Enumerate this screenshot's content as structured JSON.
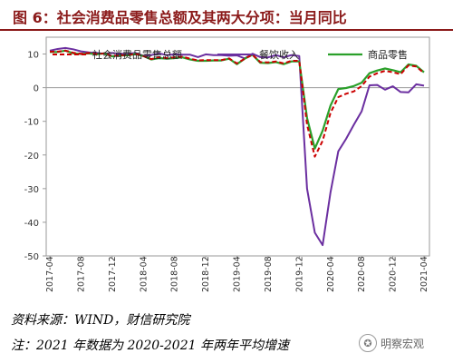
{
  "title": "图 6：社会消费品零售总额及其两大分项：当月同比",
  "source_note": "资料来源：WIND，财信研究院",
  "footnote": "注：2021 年数据为 2020-2021 年两年平均增速",
  "watermark": {
    "icon": "wechat-icon",
    "text": "明察宏观"
  },
  "colors": {
    "title": "#8b1a1a",
    "total": "#cc0000",
    "catering": "#6b2fa0",
    "goods": "#2aa02a"
  },
  "chart_data": {
    "type": "line",
    "title": "",
    "xlabel": "",
    "ylabel": "",
    "ylim": [
      -50,
      15
    ],
    "yticks": [
      -50,
      -40,
      -30,
      -20,
      -10,
      0,
      10
    ],
    "grid": false,
    "legend_position": "top",
    "x": [
      "2017-04",
      "2017-05",
      "2017-06",
      "2017-07",
      "2017-08",
      "2017-09",
      "2017-10",
      "2017-11",
      "2017-12",
      "2018-01",
      "2018-02",
      "2018-03",
      "2018-04",
      "2018-05",
      "2018-06",
      "2018-07",
      "2018-08",
      "2018-09",
      "2018-10",
      "2018-11",
      "2018-12",
      "2019-01",
      "2019-02",
      "2019-03",
      "2019-04",
      "2019-05",
      "2019-06",
      "2019-07",
      "2019-08",
      "2019-09",
      "2019-10",
      "2019-11",
      "2019-12",
      "2020-01",
      "2020-02",
      "2020-03",
      "2020-04",
      "2020-05",
      "2020-06",
      "2020-07",
      "2020-08",
      "2020-09",
      "2020-10",
      "2020-11",
      "2020-12",
      "2021-01",
      "2021-02",
      "2021-03",
      "2021-04"
    ],
    "xtick_labels": [
      "2017-04",
      "2017-08",
      "2017-12",
      "2018-04",
      "2018-08",
      "2018-12",
      "2019-04",
      "2019-08",
      "2019-12",
      "2020-04",
      "2020-08",
      "2020-12",
      "2021-04"
    ],
    "series": [
      {
        "name": "社会消费品零售总额",
        "style": "dashed",
        "values": [
          10.7,
          10.7,
          11.0,
          10.4,
          10.1,
          10.3,
          10.0,
          10.2,
          9.4,
          9.7,
          9.7,
          10.1,
          9.4,
          8.5,
          9.0,
          8.8,
          9.0,
          9.2,
          8.6,
          8.1,
          8.2,
          8.2,
          8.2,
          8.7,
          7.2,
          8.6,
          9.8,
          7.6,
          7.5,
          7.8,
          7.2,
          8.0,
          8.0,
          -11.0,
          -20.5,
          -15.8,
          -7.5,
          -2.8,
          -1.8,
          -1.1,
          0.5,
          3.3,
          4.3,
          5.0,
          4.6,
          4.0,
          6.6,
          6.3,
          4.3
        ]
      },
      {
        "name": "餐饮收入",
        "values": [
          11.0,
          11.5,
          11.8,
          11.4,
          10.8,
          10.5,
          10.3,
          10.1,
          10.3,
          10.1,
          10.1,
          10.3,
          9.5,
          9.7,
          10.2,
          9.7,
          9.9,
          9.8,
          9.8,
          9.1,
          9.9,
          9.7,
          9.7,
          9.5,
          9.6,
          8.7,
          10.1,
          9.1,
          9.0,
          9.7,
          9.0,
          9.7,
          9.4,
          -30.0,
          -43.1,
          -46.8,
          -31.1,
          -18.9,
          -15.2,
          -11.0,
          -7.0,
          0.7,
          0.8,
          -0.6,
          0.4,
          -1.3,
          -1.4,
          1.0,
          0.6
        ]
      },
      {
        "name": "商品零售",
        "values": [
          10.6,
          10.6,
          11.0,
          10.2,
          10.0,
          10.2,
          9.9,
          10.2,
          9.3,
          9.6,
          9.6,
          10.0,
          9.4,
          8.4,
          8.8,
          8.6,
          8.8,
          9.0,
          8.4,
          8.0,
          8.0,
          8.1,
          8.1,
          8.6,
          7.0,
          8.6,
          9.8,
          7.4,
          7.3,
          7.6,
          7.0,
          7.8,
          7.8,
          -9.0,
          -18.1,
          -12.8,
          -5.3,
          -0.4,
          -0.1,
          0.5,
          1.5,
          4.3,
          5.1,
          5.7,
          5.2,
          4.6,
          6.9,
          6.5,
          4.6
        ]
      }
    ]
  }
}
